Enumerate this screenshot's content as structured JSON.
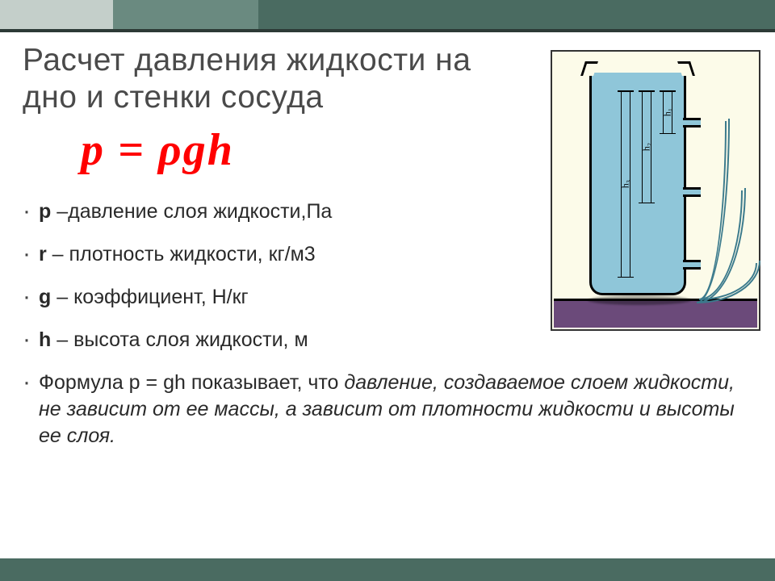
{
  "title_line1": "Расчет давления жидкости на",
  "title_line2": "дно и стенки сосуда",
  "formula": "p = ρgh",
  "bullets": {
    "b1_sym": "p",
    "b1_txt": " –давление слоя жидкости,Па",
    "b2_sym": "r",
    "b2_txt": " – плотность жидкости, кг/м3",
    "b3_sym": "g",
    "b3_txt": " – коэффициент, Н/кг",
    "b4_sym": "h",
    "b4_txt": " – высота слоя жидкости, м",
    "b5_a": "Формула p =    gh показывает, что ",
    "b5_em": "давление, создаваемое слоем жидкости, не зависит от ее массы, а зависит от плотности жидкости и высоты ее слоя."
  },
  "diagram": {
    "h1": "h₁",
    "h2": "h₂",
    "h3": "h₃",
    "liquid_color": "#8fc6d9",
    "bg_color": "#fcfbe9",
    "ground_color": "#6b4a7a"
  },
  "decor": {
    "band_a": "#c4cfca",
    "band_b": "#6a8a80",
    "band_c": "#4a6b61",
    "line": "#2c3a36"
  }
}
